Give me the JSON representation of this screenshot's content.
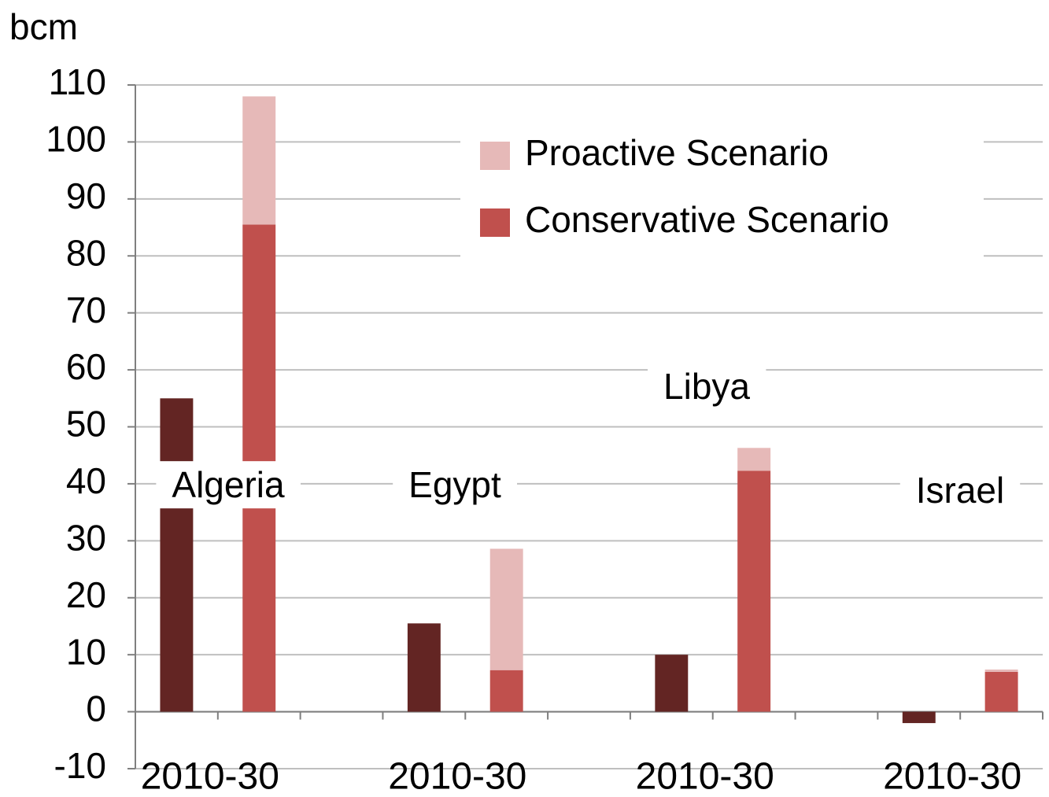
{
  "chart_data": {
    "type": "bar",
    "stacked": true,
    "y_label": "bcm",
    "categories": [
      "2010-30",
      "2010-30",
      "2010-30",
      "2010-30"
    ],
    "annotations": [
      "Algeria",
      "Egypt",
      "Libya",
      "Israel"
    ],
    "series": [
      {
        "color": "#632523",
        "values": [
          55,
          15.5,
          10,
          -2
        ]
      },
      {
        "name": "Conservative Scenario",
        "color": "#c0504d",
        "values": [
          85.5,
          7.3,
          42.3,
          7
        ],
        "stack": "2030"
      },
      {
        "name": "Proactive Scenario",
        "color": "#e6b9b8",
        "values": [
          22.5,
          21.3,
          4,
          0.4
        ],
        "stack": "2030"
      }
    ],
    "ylim": [
      -10,
      110
    ],
    "yticks": [
      -10,
      0,
      10,
      20,
      30,
      40,
      50,
      60,
      70,
      80,
      90,
      100,
      110
    ],
    "grid": true,
    "legend": "top-right"
  }
}
